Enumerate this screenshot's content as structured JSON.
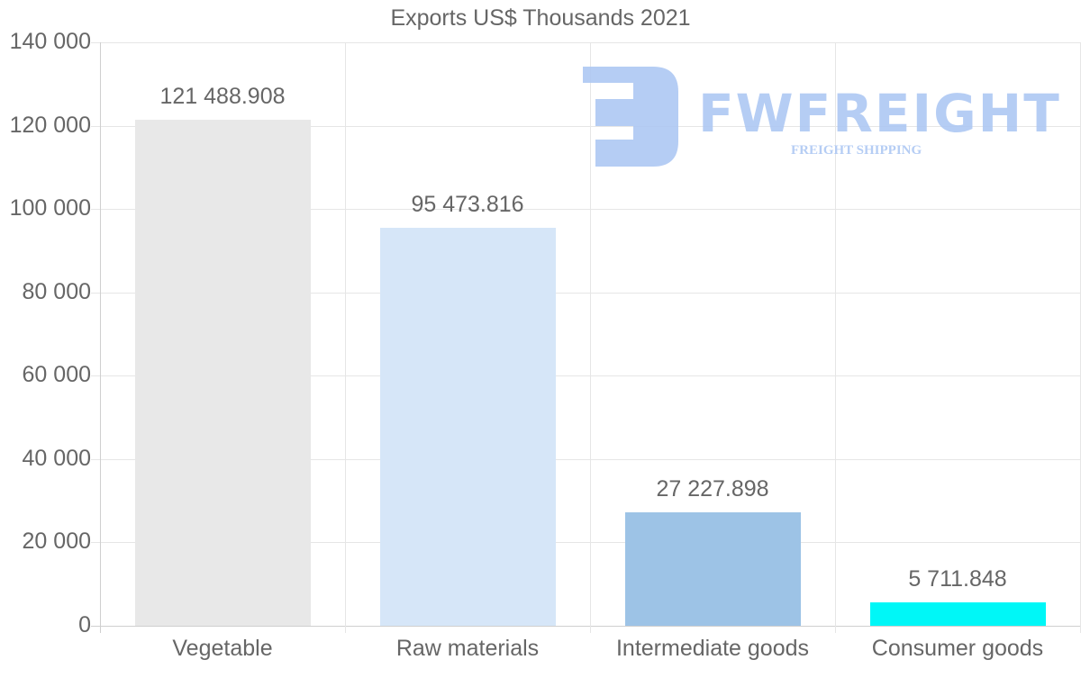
{
  "chart_data": {
    "type": "bar",
    "title": "Exports US$ Thousands 2021",
    "xlabel": "",
    "ylabel": "",
    "categories": [
      "Vegetable",
      "Raw materials",
      "Intermediate goods",
      "Consumer goods"
    ],
    "values": [
      121488.908,
      95473.816,
      27227.898,
      5711.848
    ],
    "value_labels": [
      "121 488.908",
      "95 473.816",
      "27 227.898",
      "5 711.848"
    ],
    "colors": [
      "#e8e8e8",
      "#d6e6f8",
      "#9dc3e6",
      "#00f7f7"
    ],
    "ylim": [
      0,
      140000
    ],
    "yticks": [
      0,
      20000,
      40000,
      60000,
      80000,
      100000,
      120000,
      140000
    ],
    "ytick_labels": [
      "0",
      "20 000",
      "40 000",
      "60 000",
      "80 000",
      "100 000",
      "120 000",
      "140 000"
    ],
    "grid": true,
    "legend": "none"
  },
  "watermark": {
    "brand": "FWFREIGHT",
    "tagline": "FREIGHT SHIPPING",
    "color": "#aec8f3"
  }
}
